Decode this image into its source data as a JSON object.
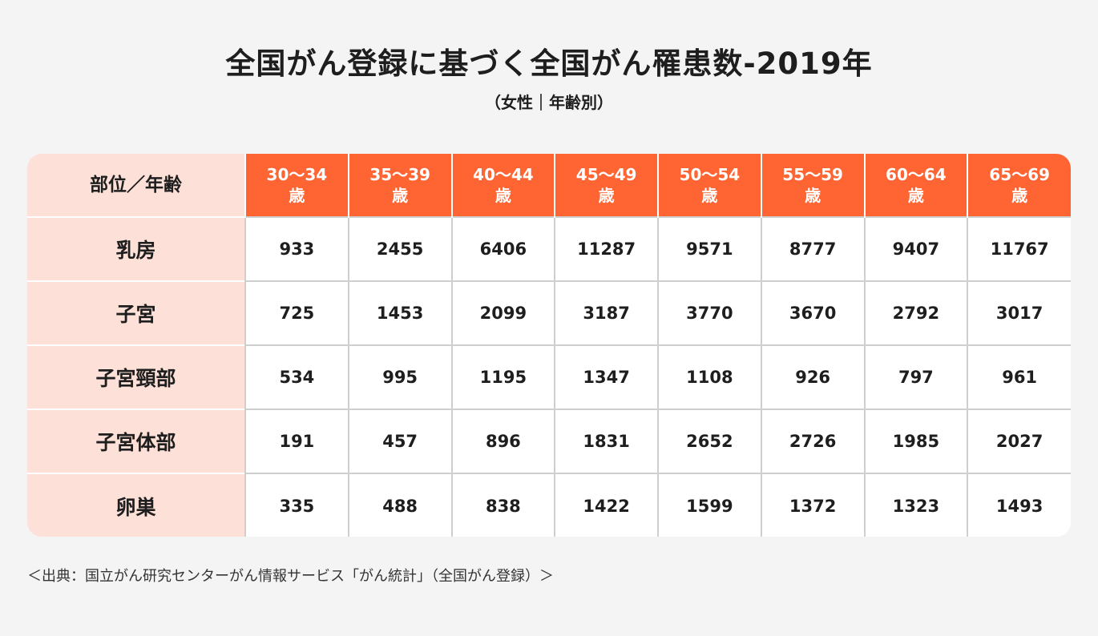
{
  "chart_data": {
    "type": "table",
    "title": "全国がん登録に基づく全国がん罹患数-2019年",
    "subtitle": "（女性｜年齢別）",
    "corner_label": "部位／年齢",
    "columns": [
      {
        "range": "30〜34",
        "unit": "歳"
      },
      {
        "range": "35〜39",
        "unit": "歳"
      },
      {
        "range": "40〜44",
        "unit": "歳"
      },
      {
        "range": "45〜49",
        "unit": "歳"
      },
      {
        "range": "50〜54",
        "unit": "歳"
      },
      {
        "range": "55〜59",
        "unit": "歳"
      },
      {
        "range": "60〜64",
        "unit": "歳"
      },
      {
        "range": "65〜69",
        "unit": "歳"
      }
    ],
    "rows": [
      {
        "site": "乳房",
        "values": [
          933,
          2455,
          6406,
          11287,
          9571,
          8777,
          9407,
          11767
        ]
      },
      {
        "site": "子宮",
        "values": [
          725,
          1453,
          2099,
          3187,
          3770,
          3670,
          2792,
          3017
        ]
      },
      {
        "site": "子宮頸部",
        "values": [
          534,
          995,
          1195,
          1347,
          1108,
          926,
          797,
          961
        ]
      },
      {
        "site": "子宮体部",
        "values": [
          191,
          457,
          896,
          1831,
          2652,
          2726,
          1985,
          2027
        ]
      },
      {
        "site": "卵巣",
        "values": [
          335,
          488,
          838,
          1422,
          1599,
          1372,
          1323,
          1493
        ]
      }
    ],
    "source": "＜出典：国立がん研究センターがん情報サービス「がん統計」（全国がん登録）＞"
  },
  "colors": {
    "header_orange": "#ff6533",
    "row_header_pink": "#fde1d8",
    "background": "#f4f4f4"
  }
}
